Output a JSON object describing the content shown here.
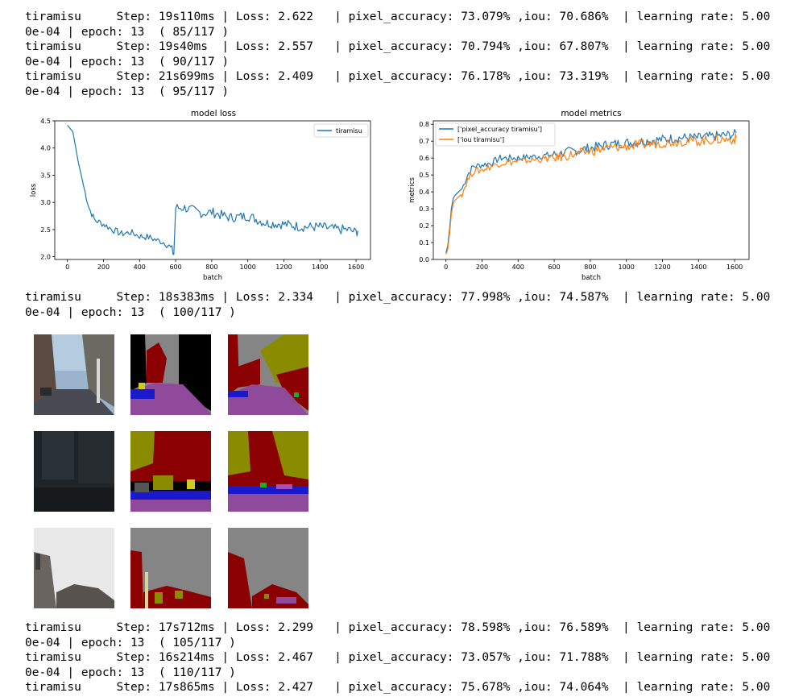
{
  "logs_before": [
    "tiramisu     Step: 19s110ms | Loss: 2.622   | pixel_accuracy: 73.079% ,iou: 70.686%  | learning rate: 5.00",
    "0e-04 | epoch: 13  ( 85/117 )",
    "tiramisu     Step: 19s40ms  | Loss: 2.557   | pixel_accuracy: 70.794% ,iou: 67.807%  | learning rate: 5.00",
    "0e-04 | epoch: 13  ( 90/117 )",
    "tiramisu     Step: 21s699ms | Loss: 2.409   | pixel_accuracy: 76.178% ,iou: 73.319%  | learning rate: 5.00",
    "0e-04 | epoch: 13  ( 95/117 )"
  ],
  "logs_middle": [
    "tiramisu     Step: 18s383ms | Loss: 2.334   | pixel_accuracy: 77.998% ,iou: 74.587%  | learning rate: 5.00",
    "0e-04 | epoch: 13  ( 100/117 )"
  ],
  "logs_after": [
    "tiramisu     Step: 17s712ms | Loss: 2.299   | pixel_accuracy: 78.598% ,iou: 76.589%  | learning rate: 5.00",
    "0e-04 | epoch: 13  ( 105/117 )",
    "tiramisu     Step: 16s214ms | Loss: 2.467   | pixel_accuracy: 73.057% ,iou: 71.788%  | learning rate: 5.00",
    "0e-04 | epoch: 13  ( 110/117 )",
    "tiramisu     Step: 17s865ms | Loss: 2.427   | pixel_accuracy: 75.678% ,iou: 74.064%  | learning rate: 5.00"
  ],
  "chart_data": [
    {
      "type": "line",
      "title": "model loss",
      "xlabel": "batch",
      "ylabel": "loss",
      "xlim": [
        -70,
        1680
      ],
      "ylim": [
        1.95,
        4.5
      ],
      "xticks": [
        0,
        200,
        400,
        600,
        800,
        1000,
        1200,
        1400,
        1600
      ],
      "yticks": [
        2.0,
        2.5,
        3.0,
        3.5,
        4.0,
        4.5
      ],
      "legend_position": "top-right",
      "grid": false,
      "series": [
        {
          "name": "tiramisu",
          "color": "#1f77b4",
          "x": [
            0,
            30,
            60,
            90,
            120,
            150,
            200,
            250,
            300,
            350,
            400,
            450,
            500,
            550,
            580,
            590,
            600,
            650,
            700,
            750,
            800,
            900,
            1000,
            1100,
            1200,
            1300,
            1400,
            1500,
            1550,
            1600,
            1610
          ],
          "values": [
            4.42,
            4.3,
            3.75,
            3.3,
            2.9,
            2.68,
            2.6,
            2.5,
            2.42,
            2.45,
            2.38,
            2.36,
            2.3,
            2.25,
            2.12,
            2.05,
            2.9,
            2.9,
            2.85,
            2.8,
            2.82,
            2.72,
            2.75,
            2.62,
            2.6,
            2.55,
            2.55,
            2.5,
            2.5,
            2.45,
            2.48
          ]
        }
      ]
    },
    {
      "type": "line",
      "title": "model metrics",
      "xlabel": "batch",
      "ylabel": "metrics",
      "xlim": [
        -70,
        1680
      ],
      "ylim": [
        0.0,
        0.82
      ],
      "xticks": [
        0,
        200,
        400,
        600,
        800,
        1000,
        1200,
        1400,
        1600
      ],
      "yticks": [
        0.0,
        0.1,
        0.2,
        0.3,
        0.4,
        0.5,
        0.6,
        0.7,
        0.8
      ],
      "legend_position": "top-left",
      "grid": false,
      "series": [
        {
          "name": "['pixel_accuracy tiramisu']",
          "color": "#1f77b4",
          "x": [
            0,
            10,
            20,
            30,
            40,
            50,
            70,
            90,
            120,
            150,
            200,
            250,
            300,
            400,
            500,
            600,
            700,
            800,
            900,
            1000,
            1100,
            1200,
            1300,
            1400,
            1500,
            1600,
            1610
          ],
          "values": [
            0.04,
            0.08,
            0.18,
            0.3,
            0.36,
            0.38,
            0.4,
            0.42,
            0.5,
            0.55,
            0.56,
            0.57,
            0.6,
            0.6,
            0.61,
            0.62,
            0.64,
            0.66,
            0.68,
            0.69,
            0.7,
            0.71,
            0.72,
            0.72,
            0.73,
            0.74,
            0.75
          ]
        },
        {
          "name": "['iou tiramisu']",
          "color": "#ff7f0e",
          "x": [
            0,
            10,
            20,
            30,
            40,
            50,
            70,
            90,
            120,
            150,
            200,
            250,
            300,
            400,
            500,
            600,
            700,
            800,
            900,
            1000,
            1100,
            1200,
            1300,
            1400,
            1500,
            1600,
            1610
          ],
          "values": [
            0.03,
            0.06,
            0.15,
            0.27,
            0.33,
            0.35,
            0.37,
            0.39,
            0.47,
            0.52,
            0.53,
            0.55,
            0.57,
            0.58,
            0.59,
            0.6,
            0.62,
            0.64,
            0.66,
            0.67,
            0.68,
            0.69,
            0.7,
            0.7,
            0.71,
            0.71,
            0.72
          ]
        }
      ]
    }
  ],
  "thumb_colors": {
    "road": "#8f4a9c",
    "sky": "#858585",
    "building": "#8b0000",
    "vegetation": "#8b8b00",
    "car": "#1a1acc",
    "void": "#000000",
    "pole": "#d4d4a0",
    "sidewalk": "#7a3fa8",
    "sign": "#cccc20",
    "pedestrian": "#22aa22"
  }
}
